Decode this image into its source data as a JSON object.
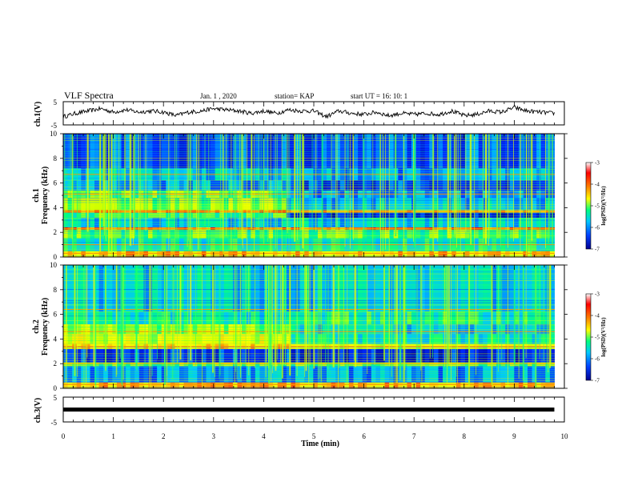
{
  "header": {
    "title": "VLF Spectra",
    "date": "Jan. 1 , 2020",
    "station": "station= KAP",
    "start": "start UT = 16: 10: 1"
  },
  "colorbar": {
    "label": "log(PSD)(V²/Hz)",
    "ticks": [
      "-3",
      "-4",
      "-5",
      "-6",
      "-7"
    ],
    "colors": [
      "#ff0000",
      "#ff8000",
      "#ffff00",
      "#00ff80",
      "#00c8ff",
      "#0040ff",
      "#000090"
    ]
  },
  "chart_data": [
    {
      "type": "line",
      "name": "ch1-waveform",
      "ylabel": "ch.1(V)",
      "ylim": [
        -5,
        5
      ],
      "yticks": [
        "5",
        "-5"
      ],
      "xlim": [
        0,
        10
      ],
      "x": [
        0,
        0.25,
        0.5,
        0.75,
        1,
        1.25,
        1.5,
        1.75,
        2,
        2.25,
        2.5,
        2.75,
        3,
        3.25,
        3.5,
        3.75,
        4,
        4.25,
        4.5,
        4.75,
        5,
        5.25,
        5.5,
        5.75,
        6,
        6.25,
        6.5,
        6.75,
        7,
        7.25,
        7.5,
        7.75,
        8,
        8.25,
        8.5,
        8.75,
        9,
        9.25,
        9.5,
        9.8
      ],
      "values": [
        -1.5,
        0,
        1,
        2,
        0.5,
        1.5,
        0.5,
        1,
        0.5,
        -1,
        0.5,
        1,
        2,
        1.5,
        1,
        0,
        1,
        0,
        1.5,
        1,
        1,
        -1.5,
        1,
        0,
        -0.5,
        0.5,
        -1,
        0,
        -0.5,
        0,
        -0.5,
        1,
        -1,
        -0.5,
        1,
        0.5,
        2.5,
        1,
        0.5,
        0
      ]
    },
    {
      "type": "heatmap",
      "name": "ch1-spectrogram",
      "ylabel": "ch.1\nFrequency (kHz)",
      "ylim": [
        0,
        10
      ],
      "yticks": [
        "0",
        "2",
        "4",
        "6",
        "8",
        "10"
      ],
      "xlim": [
        0,
        10
      ],
      "clim": [
        -7,
        -3
      ],
      "transition_min": 4.45,
      "bands": [
        {
          "kHz": [
            0.0,
            0.5
          ],
          "before": -3.8,
          "after": -3.8
        },
        {
          "kHz": [
            0.5,
            1.5
          ],
          "before": -5.2,
          "after": -5.2
        },
        {
          "kHz": [
            1.5,
            2.2
          ],
          "before": -4.8,
          "after": -4.8
        },
        {
          "kHz": [
            2.2,
            2.4
          ],
          "before": -3.5,
          "after": -3.5
        },
        {
          "kHz": [
            2.4,
            3.2
          ],
          "before": -5.5,
          "after": -5.5
        },
        {
          "kHz": [
            3.2,
            3.6
          ],
          "before": -5.0,
          "after": -6.5
        },
        {
          "kHz": [
            3.6,
            3.8
          ],
          "before": -3.5,
          "after": -3.8
        },
        {
          "kHz": [
            3.8,
            4.8
          ],
          "before": -4.6,
          "after": -5.6
        },
        {
          "kHz": [
            4.8,
            5.4
          ],
          "before": -4.8,
          "after": -5.8
        },
        {
          "kHz": [
            5.4,
            6.2
          ],
          "before": -5.8,
          "after": -6.2
        },
        {
          "kHz": [
            6.2,
            7.2
          ],
          "before": -5.6,
          "after": -5.8
        },
        {
          "kHz": [
            7.2,
            10.0
          ],
          "before": -6.1,
          "after": -6.1
        }
      ],
      "lines_kHz": [
        0.3,
        1.0,
        2.3,
        3.7,
        5.1,
        6.7
      ]
    },
    {
      "type": "heatmap",
      "name": "ch2-spectrogram",
      "ylabel": "ch.2\nFrequency (kHz)",
      "ylim": [
        0,
        10
      ],
      "yticks": [
        "0",
        "2",
        "4",
        "6",
        "8",
        "10"
      ],
      "xlim": [
        0,
        10
      ],
      "clim": [
        -7,
        -3
      ],
      "transition_min": 4.5,
      "bands": [
        {
          "kHz": [
            0.0,
            0.5
          ],
          "before": -3.8,
          "after": -3.8
        },
        {
          "kHz": [
            0.5,
            1.8
          ],
          "before": -5.8,
          "after": -5.8
        },
        {
          "kHz": [
            1.8,
            2.1
          ],
          "before": -4.8,
          "after": -4.8
        },
        {
          "kHz": [
            2.1,
            3.2
          ],
          "before": -6.2,
          "after": -6.4
        },
        {
          "kHz": [
            3.2,
            3.6
          ],
          "before": -4.0,
          "after": -4.3
        },
        {
          "kHz": [
            3.6,
            4.4
          ],
          "before": -4.3,
          "after": -5.3
        },
        {
          "kHz": [
            4.4,
            5.2
          ],
          "before": -4.6,
          "after": -5.5
        },
        {
          "kHz": [
            5.2,
            6.2
          ],
          "before": -5.3,
          "after": -5.1
        },
        {
          "kHz": [
            6.2,
            10.0
          ],
          "before": -5.5,
          "after": -5.5
        }
      ],
      "lines_kHz": [
        0.3,
        2.0,
        3.4,
        4.6,
        6.4
      ]
    },
    {
      "type": "line",
      "name": "ch3-waveform",
      "ylabel": "ch.3(V)",
      "ylim": [
        -5,
        5
      ],
      "yticks": [
        "5",
        "-5"
      ],
      "xlim": [
        0,
        10
      ],
      "x": [
        0,
        9.8
      ],
      "values": [
        0,
        0
      ]
    }
  ],
  "xaxis": {
    "label": "Time (min)",
    "ticks": [
      "0",
      "1",
      "2",
      "3",
      "4",
      "5",
      "6",
      "7",
      "8",
      "9",
      "10"
    ]
  }
}
